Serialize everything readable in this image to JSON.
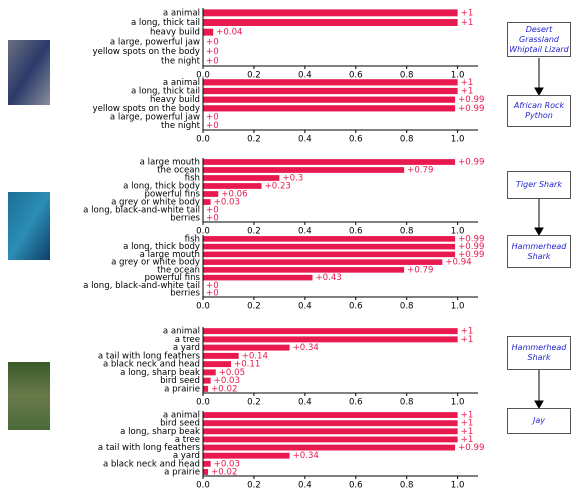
{
  "chart_data": [
    {
      "type": "barh",
      "color": "#e8194f",
      "categories": [
        "a animal",
        "a long, thick tail",
        "heavy build",
        "a large, powerful jaw",
        "yellow spots on the body",
        "the night"
      ],
      "values": [
        1,
        1,
        0.04,
        0,
        0,
        0
      ],
      "value_labels": [
        "+1",
        "+1",
        "+0.04",
        "+0",
        "+0",
        "+0"
      ],
      "xlim": [
        0,
        1.08
      ],
      "xticks": [
        {
          "value": 0,
          "label": "0.0"
        },
        0.2,
        0.4,
        0.6,
        0.8,
        {
          "value": 1,
          "label": "1.0"
        }
      ]
    },
    {
      "type": "barh",
      "color": "#e8194f",
      "categories": [
        "a animal",
        "a long, thick tail",
        "heavy build",
        "yellow spots on the body",
        "a large, powerful jaw",
        "the night"
      ],
      "values": [
        1,
        1,
        0.99,
        0.99,
        0,
        0
      ],
      "value_labels": [
        "+1",
        "+1",
        "+0.99",
        "+0.99",
        "+0",
        "+0"
      ],
      "xlim": [
        0,
        1.08
      ],
      "xticks": [
        {
          "value": 0,
          "label": "0.0"
        },
        0.2,
        0.4,
        0.6,
        0.8,
        {
          "value": 1,
          "label": "1.0"
        }
      ]
    },
    {
      "type": "barh",
      "color": "#e8194f",
      "categories": [
        "a large mouth",
        "the ocean",
        "fish",
        "a long, thick body",
        "powerful fins",
        "a grey or white body",
        "a long, black-and-white tail",
        "berries"
      ],
      "values": [
        0.99,
        0.79,
        0.3,
        0.23,
        0.06,
        0.03,
        0,
        0
      ],
      "value_labels": [
        "+0.99",
        "+0.79",
        "+0.3",
        "+0.23",
        "+0.06",
        "+0.03",
        "+0",
        "+0"
      ],
      "xlim": [
        0,
        1.08
      ],
      "xticks": [
        {
          "value": 0,
          "label": "0.0"
        },
        0.2,
        0.4,
        0.6,
        0.8,
        {
          "value": 1,
          "label": "1.0"
        }
      ]
    },
    {
      "type": "barh",
      "color": "#e8194f",
      "categories": [
        "fish",
        "a long, thick body",
        "a large mouth",
        "a grey or white body",
        "the ocean",
        "powerful fins",
        "a long, black-and-white tail",
        "berries"
      ],
      "values": [
        0.99,
        0.99,
        0.99,
        0.94,
        0.79,
        0.43,
        0,
        0
      ],
      "value_labels": [
        "+0.99",
        "+0.99",
        "+0.99",
        "+0.94",
        "+0.79",
        "+0.43",
        "+0",
        "+0"
      ],
      "xlim": [
        0,
        1.08
      ],
      "xticks": [
        {
          "value": 0,
          "label": "0.0"
        },
        0.2,
        0.4,
        0.6,
        0.8,
        {
          "value": 1,
          "label": "1.0"
        }
      ]
    },
    {
      "type": "barh",
      "color": "#e8194f",
      "categories": [
        "a animal",
        "a tree",
        "a yard",
        "a tail with long feathers",
        "a black neck and head",
        "a long, sharp beak",
        "bird seed",
        "a prairie"
      ],
      "values": [
        1,
        1,
        0.34,
        0.14,
        0.11,
        0.05,
        0.03,
        0.02
      ],
      "value_labels": [
        "+1",
        "+1",
        "+0.34",
        "+0.14",
        "+0.11",
        "+0.05",
        "+0.03",
        "+0.02"
      ],
      "xlim": [
        0,
        1.08
      ],
      "xticks": [
        {
          "value": 0,
          "label": "0.0"
        },
        0.2,
        0.4,
        0.6,
        0.8,
        {
          "value": 1,
          "label": "1.0"
        }
      ]
    },
    {
      "type": "barh",
      "color": "#e8194f",
      "categories": [
        "a animal",
        "bird seed",
        "a long, sharp beak",
        "a tree",
        "a tail with long feathers",
        "a yard",
        "a black neck and head",
        "a prairie"
      ],
      "values": [
        1,
        1,
        1,
        1,
        0.99,
        0.34,
        0.03,
        0.02
      ],
      "value_labels": [
        "+1",
        "+1",
        "+1",
        "+1",
        "+0.99",
        "+0.34",
        "+0.03",
        "+0.02"
      ],
      "xlim": [
        0,
        1.08
      ],
      "xticks": [
        {
          "value": 0,
          "label": "0.0"
        },
        0.2,
        0.4,
        0.6,
        0.8,
        {
          "value": 1,
          "label": "1.0"
        }
      ]
    }
  ],
  "nodes": [
    "Desert Grassland Whiptail Lizard",
    "African Rock Python",
    "Tiger Shark",
    "Hammerhead Shark",
    "Hammerhead Shark",
    "Jay"
  ]
}
